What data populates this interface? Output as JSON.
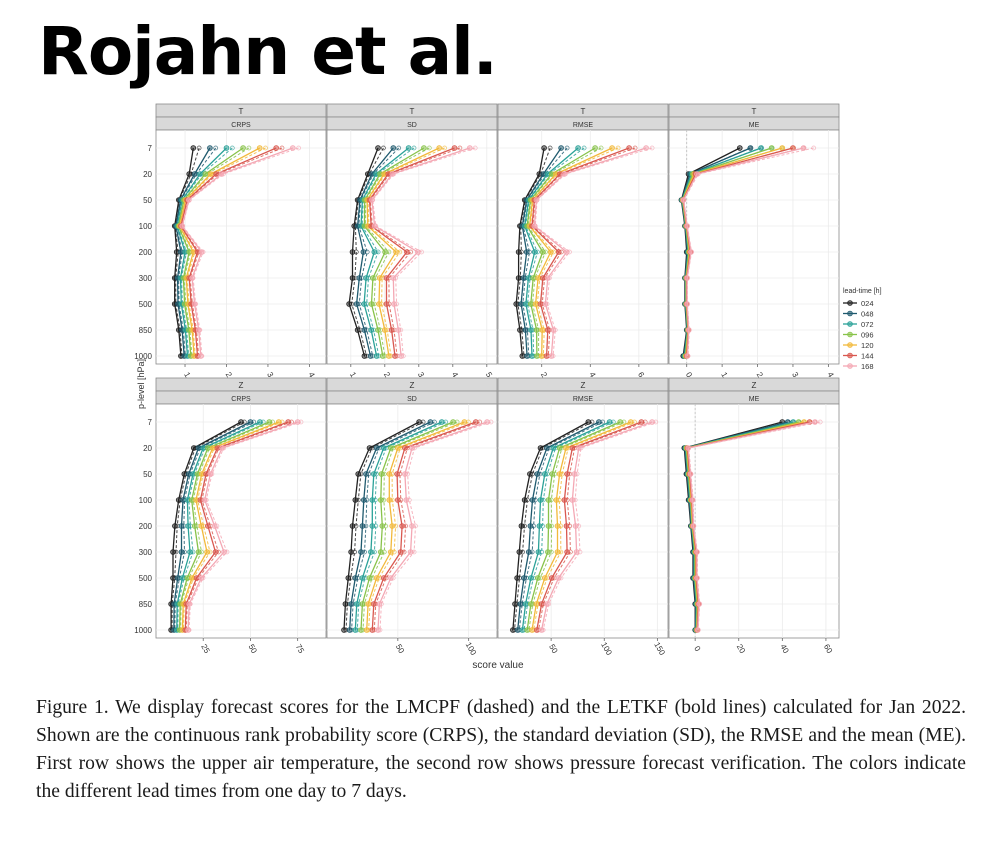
{
  "heading": "Rojahn et al.",
  "caption": "Figure 1. We display forecast scores for the LMCPF (dashed) and the LETKF (bold lines) calculated for Jan 2022. Shown are the continuous rank probability score (CRPS), the standard deviation (SD), the RMSE and the mean (ME). First row shows the upper air temperature, the second row shows pressure forecast verification. The colors indicate the different lead times from one day to 7 days.",
  "chart_data": {
    "type": "line",
    "xlabel": "score value",
    "ylabel": "p-level [hPa]",
    "y_levels": [
      "7",
      "20",
      "50",
      "100",
      "200",
      "300",
      "500",
      "850",
      "1000"
    ],
    "legend": {
      "title": "lead-time [h]",
      "placement": "right",
      "entries": [
        "024",
        "048",
        "072",
        "096",
        "120",
        "144",
        "168"
      ],
      "colors": [
        "#222222",
        "#1f5a6e",
        "#2aa198",
        "#88c34a",
        "#f2b93b",
        "#d9584f",
        "#f4a8b4"
      ]
    },
    "line_styles": {
      "LETKF": "solid",
      "LMCPF": "dashed"
    },
    "grid": true,
    "panels": [
      {
        "row": "T",
        "col": "CRPS",
        "x_ticks": [
          1,
          2,
          3,
          4
        ],
        "xlim": [
          0.3,
          4.4
        ],
        "base": [
          1.2,
          1.1,
          0.85,
          0.75,
          0.8,
          0.75,
          0.75,
          0.85,
          0.9
        ],
        "step": [
          0.4,
          0.13,
          0.04,
          0.03,
          0.1,
          0.07,
          0.08,
          0.08,
          0.08
        ]
      },
      {
        "row": "T",
        "col": "SD",
        "x_ticks": [
          1,
          2,
          3,
          4,
          5
        ],
        "xlim": [
          0.3,
          5.3
        ],
        "base": [
          1.8,
          1.5,
          1.2,
          1.1,
          1.05,
          1.05,
          0.95,
          1.2,
          1.4
        ],
        "step": [
          0.45,
          0.12,
          0.07,
          0.1,
          0.32,
          0.2,
          0.22,
          0.2,
          0.18
        ]
      },
      {
        "row": "T",
        "col": "RMSE",
        "x_ticks": [
          2,
          4,
          6
        ],
        "xlim": [
          0.2,
          7.2
        ],
        "base": [
          2.1,
          1.9,
          1.3,
          1.1,
          1.05,
          1.05,
          0.95,
          1.1,
          1.2
        ],
        "step": [
          0.7,
          0.17,
          0.08,
          0.1,
          0.33,
          0.2,
          0.2,
          0.23,
          0.2
        ]
      },
      {
        "row": "T",
        "col": "ME",
        "x_ticks": [
          0,
          1,
          2,
          3,
          4
        ],
        "xlim": [
          -0.5,
          4.3
        ],
        "base": [
          1.5,
          0.05,
          -0.15,
          -0.05,
          0.0,
          -0.05,
          -0.05,
          0.0,
          -0.1
        ],
        "step": [
          0.3,
          0.04,
          0.01,
          0.01,
          0.02,
          0.01,
          0.01,
          0.01,
          0.02
        ]
      },
      {
        "row": "Z",
        "col": "CRPS",
        "x_ticks": [
          25,
          50,
          75
        ],
        "xlim": [
          0,
          90
        ],
        "base": [
          45,
          20,
          15,
          12,
          10,
          9,
          9,
          8,
          8
        ],
        "step": [
          5,
          2.5,
          2.3,
          2.3,
          3.5,
          4.5,
          2.5,
          1.6,
          1.5
        ]
      },
      {
        "row": "Z",
        "col": "SD",
        "x_ticks": [
          50,
          100
        ],
        "xlim": [
          0,
          120
        ],
        "base": [
          65,
          30,
          22,
          20,
          18,
          17,
          15,
          13,
          12
        ],
        "step": [
          8,
          5,
          5.5,
          6,
          7,
          7,
          5,
          4,
          4
        ]
      },
      {
        "row": "Z",
        "col": "RMSE",
        "x_ticks": [
          50,
          100,
          150
        ],
        "xlim": [
          0,
          160
        ],
        "base": [
          85,
          40,
          30,
          25,
          22,
          20,
          18,
          16,
          14
        ],
        "step": [
          10,
          6,
          7,
          7.5,
          8.5,
          9,
          6.5,
          5,
          4.5
        ]
      },
      {
        "row": "Z",
        "col": "ME",
        "x_ticks": [
          0,
          20,
          40,
          60
        ],
        "xlim": [
          -12,
          66
        ],
        "base": [
          40,
          -5,
          -4,
          -3,
          -2,
          -1,
          -1,
          0,
          0
        ],
        "step": [
          2.5,
          0.3,
          0.3,
          0.3,
          0.2,
          0.3,
          0.3,
          0.3,
          0.2
        ]
      }
    ]
  }
}
